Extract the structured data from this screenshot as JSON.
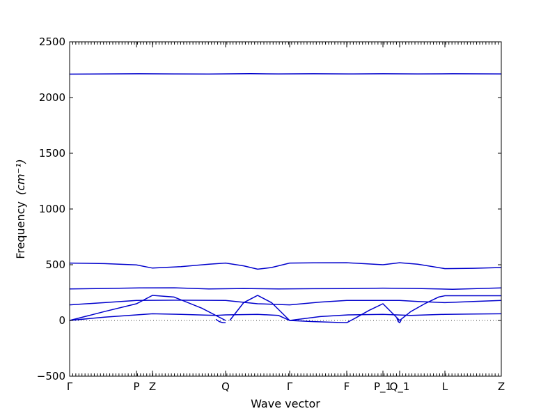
{
  "chart_data": {
    "type": "line",
    "xlabel": "Wave vector",
    "ylabel": "Frequency",
    "ylabel_unit": "(cm⁻¹)",
    "ylim": [
      -500,
      2500
    ],
    "yticks": [
      -500,
      0,
      500,
      1000,
      1500,
      2000,
      2500
    ],
    "ytick_labels": [
      "−500",
      "0",
      "500",
      "1000",
      "1500",
      "2000",
      "2500"
    ],
    "xlim": [
      0,
      6.2
    ],
    "xticks": [
      {
        "label": "Γ",
        "x": 0
      },
      {
        "label": "P",
        "x": 0.96
      },
      {
        "label": "Z",
        "x": 1.19
      },
      {
        "label": "Q",
        "x": 2.24
      },
      {
        "label": "Γ",
        "x": 3.16
      },
      {
        "label": "F",
        "x": 3.98
      },
      {
        "label": "P_1",
        "x": 4.5
      },
      {
        "label": "Q_1",
        "x": 4.74
      },
      {
        "label": "L",
        "x": 5.39
      },
      {
        "label": "Z",
        "x": 6.2
      }
    ],
    "zero_line": true,
    "color": "#0000cc",
    "series": [
      {
        "x": [
          0,
          0.5,
          1.0,
          1.5,
          2.0,
          2.6,
          3.0,
          3.5,
          4.0,
          4.5,
          5.0,
          5.5,
          6.2
        ],
        "y": [
          2210,
          2212,
          2213,
          2212,
          2211,
          2214,
          2212,
          2213,
          2212,
          2213,
          2212,
          2213,
          2212
        ]
      },
      {
        "x": [
          0,
          0.5,
          0.96,
          1.19,
          1.6,
          2.0,
          2.24,
          2.5,
          2.7,
          2.9,
          3.16,
          3.5,
          3.98,
          4.5,
          4.74,
          5.0,
          5.39,
          5.8,
          6.2
        ],
        "y": [
          515,
          510,
          498,
          470,
          483,
          505,
          515,
          490,
          460,
          475,
          515,
          517,
          518,
          500,
          518,
          505,
          465,
          468,
          475
        ]
      },
      {
        "x": [
          0,
          0.5,
          1.0,
          1.5,
          2.0,
          2.5,
          3.0,
          3.5,
          4.0,
          4.5,
          5.0,
          5.5,
          6.2
        ],
        "y": [
          283,
          287,
          292,
          293,
          283,
          287,
          283,
          285,
          286,
          290,
          287,
          280,
          292
        ]
      },
      {
        "x": [
          0,
          0.5,
          0.96,
          1.5,
          2.24,
          2.7,
          3.16,
          3.6,
          3.98,
          4.5,
          4.74,
          5.0,
          5.39,
          5.8,
          6.2
        ],
        "y": [
          140,
          160,
          180,
          182,
          180,
          150,
          140,
          165,
          180,
          180,
          180,
          170,
          160,
          170,
          180
        ]
      },
      {
        "x": [
          0,
          0.5,
          0.96,
          1.19,
          1.5,
          1.9,
          2.24
        ],
        "y": [
          0,
          80,
          150,
          225,
          210,
          110,
          0
        ]
      },
      {
        "x": [
          2.3,
          2.5,
          2.7,
          2.9,
          3.16
        ],
        "y": [
          0,
          160,
          225,
          160,
          0
        ]
      },
      {
        "x": [
          3.16,
          3.5,
          3.98,
          4.1,
          4.3,
          4.5,
          4.74
        ],
        "y": [
          0,
          -10,
          -20,
          20,
          90,
          150,
          0
        ]
      },
      {
        "x": [
          4.74,
          4.9,
          5.1,
          5.3,
          5.39,
          5.8,
          6.2
        ],
        "y": [
          0,
          80,
          150,
          210,
          222,
          222,
          222
        ]
      },
      {
        "x": [
          0,
          0.5,
          0.96,
          1.19,
          1.6,
          2.1,
          2.24,
          2.7,
          3.0,
          3.16,
          3.6,
          4.0,
          4.5,
          4.9,
          5.39,
          5.8,
          6.2
        ],
        "y": [
          0,
          30,
          50,
          60,
          55,
          45,
          50,
          55,
          45,
          0,
          35,
          50,
          55,
          45,
          55,
          58,
          60
        ]
      },
      {
        "x": [
          2.1,
          2.15,
          2.2,
          2.24
        ],
        "y": [
          10,
          -10,
          -20,
          -20
        ]
      },
      {
        "x": [
          4.7,
          4.72,
          4.74,
          4.76
        ],
        "y": [
          20,
          -10,
          -20,
          0
        ]
      }
    ]
  }
}
